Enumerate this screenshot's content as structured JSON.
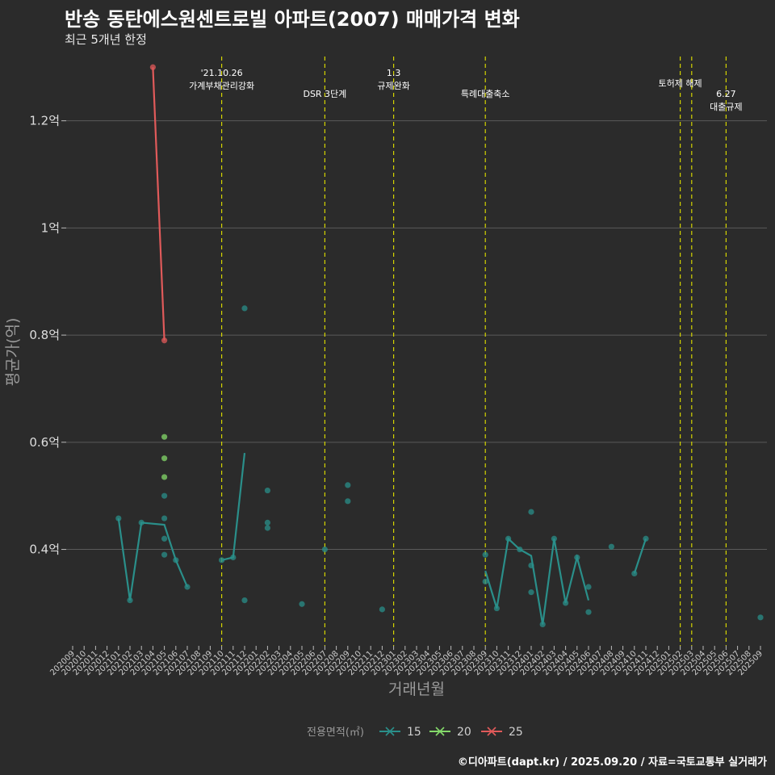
{
  "header": {
    "title": "반송 동탄에스원센트로빌 아파트(2007) 매매가격 변화",
    "subtitle": "최근 5개년 한정"
  },
  "footer": {
    "caption": "©디아파트(dapt.kr) / 2025.09.20 / 자료=국토교통부 실거래가"
  },
  "colors": {
    "background": "#2b2b2b",
    "grid": "#5a5a5a",
    "event_line": "#d4d400",
    "s15": "#2a8f8a",
    "s20": "#84d96a",
    "s25": "#e05a5a"
  },
  "chart_data": {
    "type": "line",
    "xlabel": "거래년월",
    "ylabel": "평균가(억)",
    "categories": [
      "202009",
      "202010",
      "202011",
      "202012",
      "202101",
      "202102",
      "202103",
      "202104",
      "202105",
      "202106",
      "202107",
      "202108",
      "202109",
      "202110",
      "202111",
      "202112",
      "202201",
      "202202",
      "202203",
      "202204",
      "202205",
      "202206",
      "202207",
      "202208",
      "202209",
      "202210",
      "202211",
      "202212",
      "202301",
      "202302",
      "202303",
      "202304",
      "202305",
      "202306",
      "202307",
      "202308",
      "202309",
      "202310",
      "202311",
      "202312",
      "202401",
      "202402",
      "202403",
      "202404",
      "202405",
      "202406",
      "202407",
      "202408",
      "202409",
      "202410",
      "202411",
      "202412",
      "202501",
      "202502",
      "202503",
      "202504",
      "202505",
      "202506",
      "202507",
      "202508",
      "202509"
    ],
    "y_ticks": [
      0.4,
      0.6,
      0.8,
      1.0,
      1.2
    ],
    "y_tick_labels": [
      "0.4억",
      "0.6억",
      "0.8억",
      "1억",
      "1.2억"
    ],
    "ylim": [
      0.22,
      1.32
    ],
    "grid": true,
    "legend": {
      "title": "전용면적(㎡)",
      "position": "bottom",
      "entries": [
        "15",
        "20",
        "25"
      ]
    },
    "events": [
      {
        "x": "202110",
        "label": [
          "'21.10.26",
          "가계부채관리강화"
        ],
        "label_level": 0
      },
      {
        "x": "202207",
        "label": [
          "DSR 3단계"
        ],
        "label_level": 1
      },
      {
        "x": "202301",
        "label": [
          "1.3",
          "규제완화"
        ],
        "label_level": 0
      },
      {
        "x": "202309",
        "label": [
          "특례대출축소"
        ],
        "label_level": 1
      },
      {
        "x": "202502",
        "label": [
          "토허제 해제"
        ],
        "label_level": 0.5
      },
      {
        "x": "202503",
        "label": [],
        "label_level": 0
      },
      {
        "x": "202506",
        "label": [
          "6.27",
          "대출규제"
        ],
        "label_level": 1
      }
    ],
    "series": [
      {
        "name": "15",
        "color_key": "s15",
        "line": [
          [
            "202101",
            0.458
          ],
          [
            "202102",
            0.305
          ],
          [
            "202103",
            0.45
          ],
          [
            "202105",
            0.446
          ],
          [
            "202106",
            0.38
          ],
          [
            "202107",
            0.33
          ],
          null,
          [
            "202110",
            0.38
          ],
          [
            "202111",
            0.385
          ],
          [
            "202112",
            0.58
          ],
          null,
          [
            "202309",
            0.36
          ],
          [
            "202310",
            0.29
          ],
          [
            "202311",
            0.42
          ],
          [
            "202312",
            0.4
          ],
          [
            "202401",
            0.388
          ],
          [
            "202402",
            0.26
          ],
          [
            "202403",
            0.42
          ],
          [
            "202404",
            0.3
          ],
          [
            "202405",
            0.385
          ],
          [
            "202406",
            0.305
          ],
          null,
          [
            "202410",
            0.355
          ],
          [
            "202411",
            0.42
          ]
        ],
        "points": [
          [
            "202101",
            0.458
          ],
          [
            "202102",
            0.305
          ],
          [
            "202103",
            0.45
          ],
          [
            "202105",
            0.5
          ],
          [
            "202105",
            0.458
          ],
          [
            "202105",
            0.42
          ],
          [
            "202105",
            0.39
          ],
          [
            "202106",
            0.38
          ],
          [
            "202107",
            0.33
          ],
          [
            "202110",
            0.38
          ],
          [
            "202111",
            0.385
          ],
          [
            "202112",
            0.85
          ],
          [
            "202112",
            0.305
          ],
          [
            "202202",
            0.51
          ],
          [
            "202202",
            0.45
          ],
          [
            "202202",
            0.44
          ],
          [
            "202205",
            0.298
          ],
          [
            "202207",
            0.4
          ],
          [
            "202209",
            0.52
          ],
          [
            "202209",
            0.49
          ],
          [
            "202212",
            0.288
          ],
          [
            "202309",
            0.39
          ],
          [
            "202309",
            0.34
          ],
          [
            "202310",
            0.29
          ],
          [
            "202311",
            0.42
          ],
          [
            "202312",
            0.4
          ],
          [
            "202401",
            0.47
          ],
          [
            "202401",
            0.37
          ],
          [
            "202401",
            0.32
          ],
          [
            "202402",
            0.26
          ],
          [
            "202403",
            0.42
          ],
          [
            "202404",
            0.3
          ],
          [
            "202405",
            0.385
          ],
          [
            "202406",
            0.33
          ],
          [
            "202406",
            0.283
          ],
          [
            "202408",
            0.405
          ],
          [
            "202410",
            0.355
          ],
          [
            "202411",
            0.42
          ],
          [
            "202509",
            0.273
          ]
        ]
      },
      {
        "name": "20",
        "color_key": "s20",
        "line": [],
        "points": [
          [
            "202105",
            0.61
          ],
          [
            "202105",
            0.57
          ],
          [
            "202105",
            0.535
          ]
        ]
      },
      {
        "name": "25",
        "color_key": "s25",
        "line": [
          [
            "202104",
            1.3
          ],
          [
            "202105",
            0.79
          ]
        ],
        "points": [
          [
            "202104",
            1.3
          ],
          [
            "202105",
            0.79
          ]
        ]
      }
    ]
  }
}
